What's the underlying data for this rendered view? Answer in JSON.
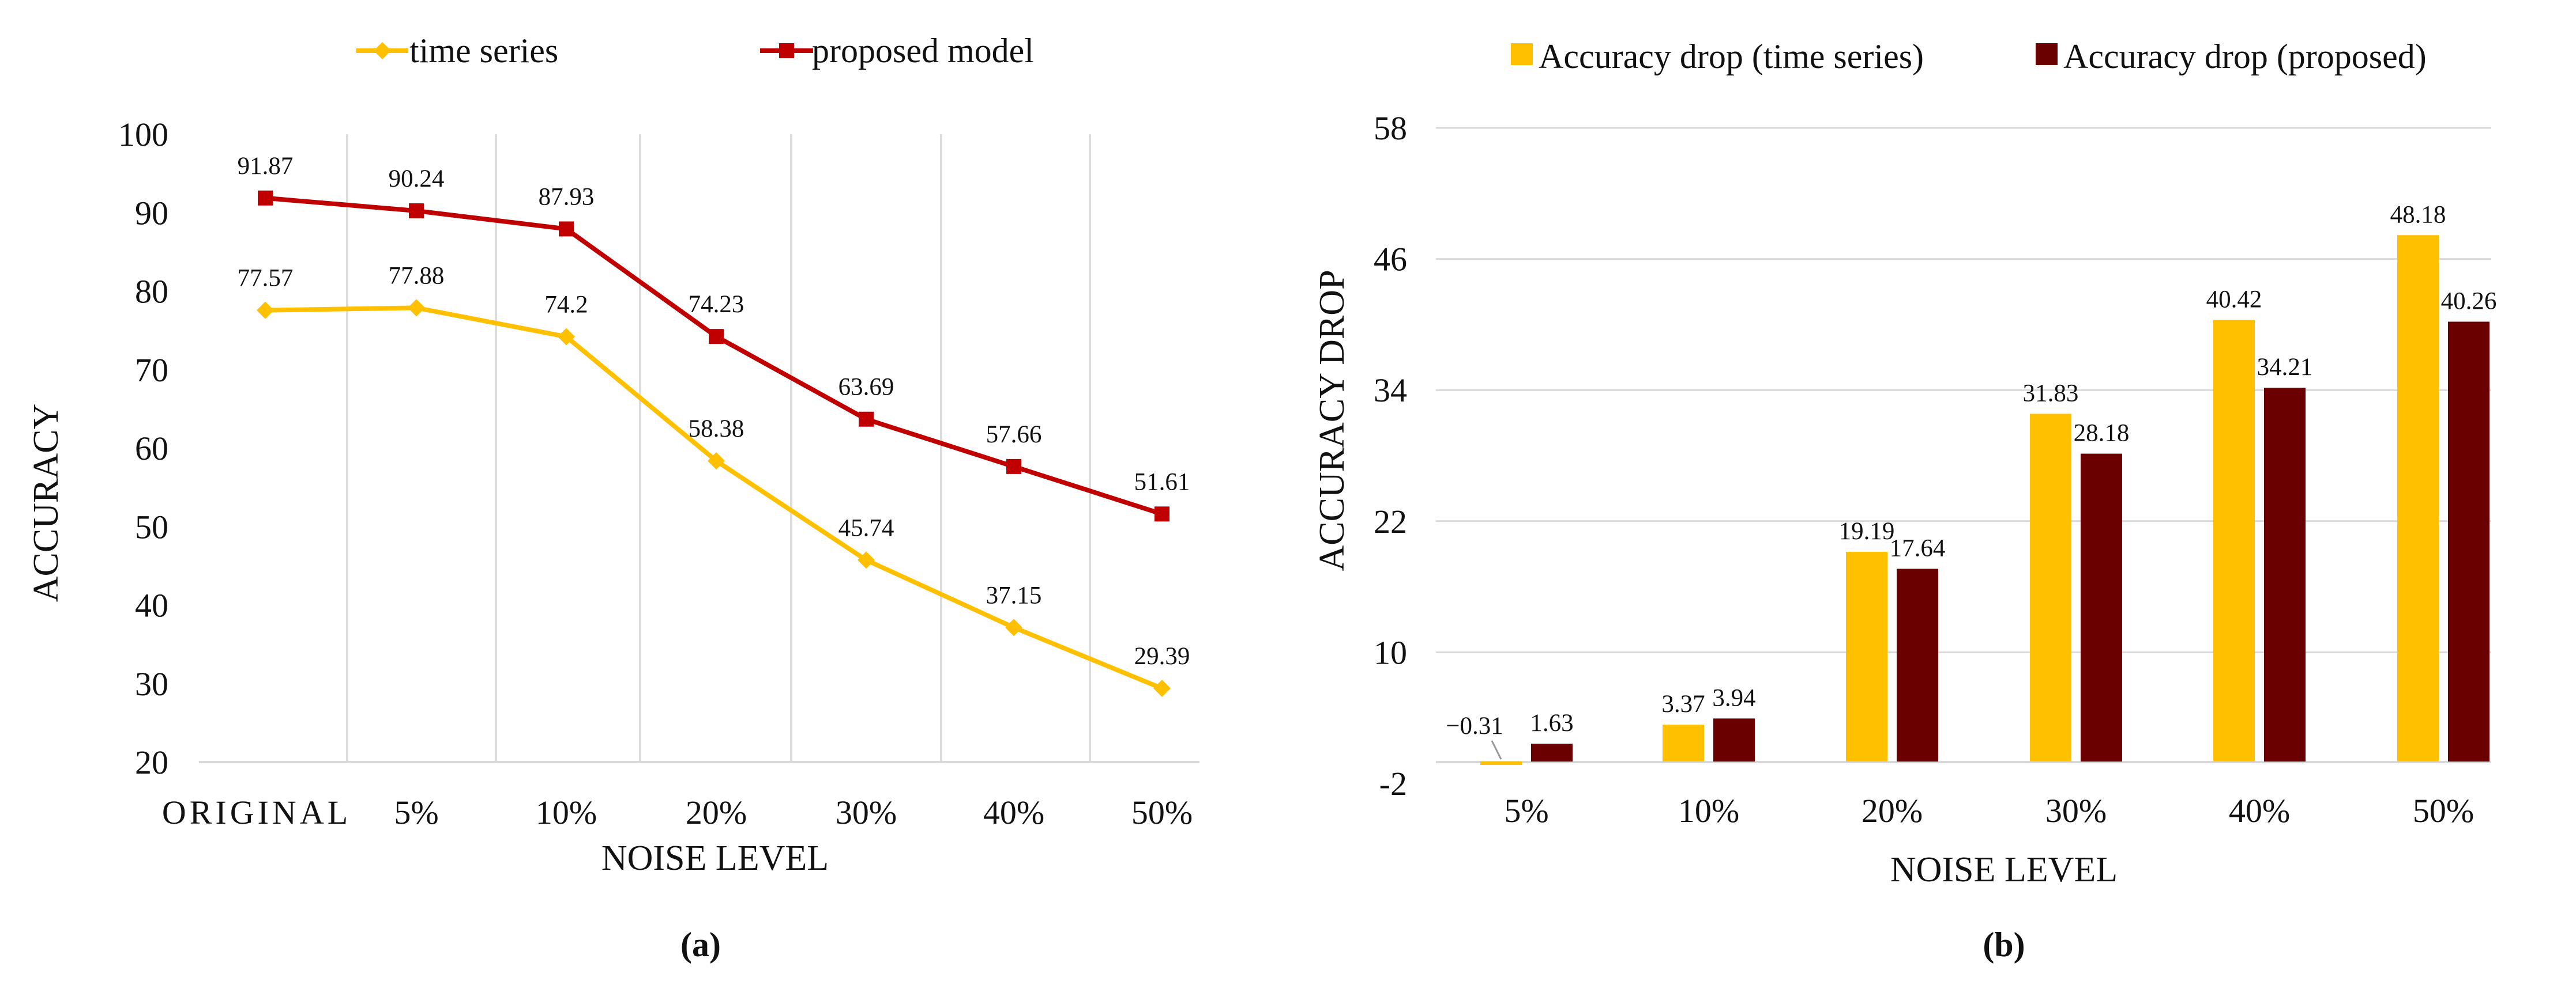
{
  "colors": {
    "time_series": "#FFC000",
    "proposed": "#C00000",
    "bar_time_series": "#FFC000",
    "bar_proposed": "#6B0000"
  },
  "chart_data": [
    {
      "type": "line",
      "caption": "(a)",
      "categories": [
        "ORIGINAL",
        "5%",
        "10%",
        "20%",
        "30%",
        "40%",
        "50%"
      ],
      "xlabel": "NOISE LEVEL",
      "ylabel": "ACCURACY",
      "ylim": [
        20,
        100
      ],
      "yticks": [
        20,
        30,
        40,
        50,
        60,
        70,
        80,
        90,
        100
      ],
      "legend_position": "top",
      "grid": "vertical",
      "series": [
        {
          "name": "time series",
          "marker": "diamond",
          "color": "#FFC000",
          "values": [
            77.57,
            77.88,
            74.2,
            58.38,
            45.74,
            37.15,
            29.39
          ],
          "labels": [
            "77.57",
            "77.88",
            "74.2",
            "58.38",
            "45.74",
            "37.15",
            "29.39"
          ]
        },
        {
          "name": "proposed model",
          "marker": "square",
          "color": "#C00000",
          "values": [
            91.87,
            90.24,
            87.93,
            74.23,
            63.69,
            57.66,
            51.61
          ],
          "labels": [
            "91.87",
            "90.24",
            "87.93",
            "74.23",
            "63.69",
            "57.66",
            "51.61"
          ]
        }
      ]
    },
    {
      "type": "bar",
      "caption": "(b)",
      "categories": [
        "5%",
        "10%",
        "20%",
        "30%",
        "40%",
        "50%"
      ],
      "xlabel": "NOISE LEVEL",
      "ylabel": "ACCURACY DROP",
      "ylim": [
        -2,
        58
      ],
      "yticks": [
        -2,
        10,
        22,
        34,
        46,
        58
      ],
      "ytick_labels": [
        "-2",
        "10",
        "22",
        "34",
        "46",
        "58"
      ],
      "legend_position": "top",
      "grid": "horizontal",
      "series": [
        {
          "name": "Accuracy drop (time series)",
          "color": "#FFC000",
          "values": [
            -0.31,
            3.37,
            19.19,
            31.83,
            40.42,
            48.18
          ],
          "labels": [
            "−0.31",
            "3.37",
            "19.19",
            "31.83",
            "40.42",
            "48.18"
          ]
        },
        {
          "name": "Accuracy drop (proposed)",
          "color": "#6B0000",
          "values": [
            1.63,
            3.94,
            17.64,
            28.18,
            34.21,
            40.26
          ],
          "labels": [
            "1.63",
            "3.94",
            "17.64",
            "28.18",
            "34.21",
            "40.26"
          ]
        }
      ]
    }
  ]
}
